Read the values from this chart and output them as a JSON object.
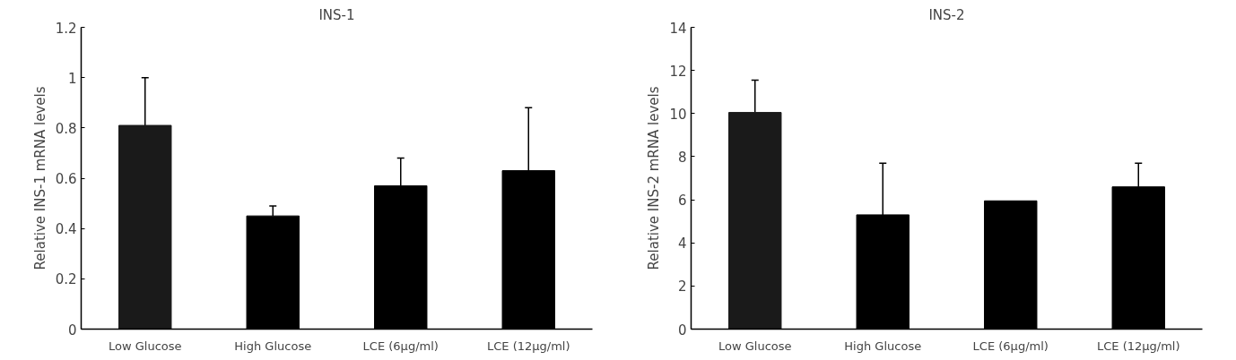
{
  "chart_data": [
    {
      "type": "bar",
      "title": "INS-1",
      "ylabel": "Relative INS-1 mRNA levels",
      "categories": [
        "Low Glucose",
        "High Glucose",
        "LCE (6μg/ml)",
        "LCE (12μg/ml)"
      ],
      "values": [
        0.81,
        0.45,
        0.57,
        0.63
      ],
      "colors": [
        "#1a1a1a",
        "#000000",
        "#000000",
        "#000000"
      ],
      "errors": [
        [
          0.81,
          1.0
        ],
        [
          0.45,
          0.49
        ],
        [
          0.57,
          0.68
        ],
        [
          0.63,
          0.88
        ]
      ],
      "ylim": [
        0,
        1.2
      ],
      "yticks": [
        0,
        0.2,
        0.4,
        0.6,
        0.8,
        1,
        1.2
      ],
      "grid": false
    },
    {
      "type": "bar",
      "title": "INS-2",
      "ylabel": "Relative INS-2 mRNA levels",
      "categories": [
        "Low Glucose",
        "High Glucose",
        "LCE (6μg/ml)",
        "LCE (12μg/ml)"
      ],
      "values": [
        10.05,
        5.3,
        5.95,
        6.6
      ],
      "colors": [
        "#1a1a1a",
        "#000000",
        "#000000",
        "#000000"
      ],
      "errors": [
        [
          10.05,
          11.55
        ],
        [
          5.3,
          7.7
        ],
        null,
        [
          6.6,
          7.7
        ]
      ],
      "ylim": [
        0,
        14
      ],
      "yticks": [
        0,
        2,
        4,
        6,
        8,
        10,
        12,
        14
      ],
      "grid": false
    }
  ]
}
